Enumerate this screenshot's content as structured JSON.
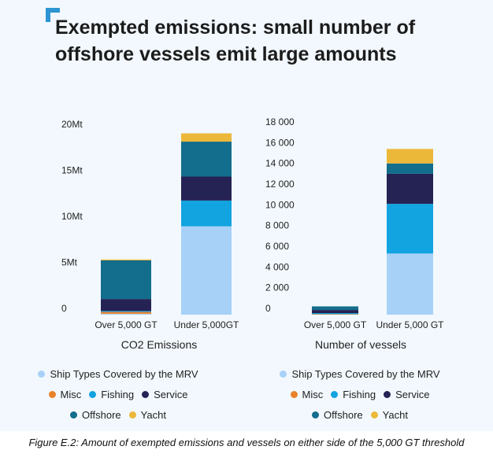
{
  "title_lines": [
    "Exempted emissions: small number of",
    "offshore vessels emit large amounts"
  ],
  "caption": "Figure E.2: Amount of exempted emissions and vessels on either side of the 5,000 GT threshold",
  "legend_rows": [
    [
      {
        "label": "Ship Types Covered by the MRV",
        "color": "#a8d1f7"
      }
    ],
    [
      {
        "label": "Misc",
        "color": "#e9822a"
      },
      {
        "label": "Fishing",
        "color": "#12a4e0"
      },
      {
        "label": "Service",
        "color": "#252254"
      }
    ],
    [
      {
        "label": "Offshore",
        "color": "#136d8c"
      },
      {
        "label": "Yacht",
        "color": "#ecb83a"
      }
    ]
  ],
  "chart_data": [
    {
      "type": "bar",
      "stacked": true,
      "title": "",
      "xlabel": "CO2 Emissions",
      "ylabel": "",
      "categories": [
        "Over 5,000 GT",
        "Under 5,000GT"
      ],
      "ylim": [
        0,
        20
      ],
      "yticks": [
        0,
        5,
        10,
        15,
        20
      ],
      "ytick_labels": [
        "0",
        "5Mt",
        "10Mt",
        "15Mt",
        "20Mt"
      ],
      "grid": false,
      "legend_position": "bottom",
      "series": [
        {
          "name": "Ship Types Covered by the MRV",
          "color": "#a8d1f7",
          "values": [
            0.1,
            9.6
          ]
        },
        {
          "name": "Misc",
          "color": "#e9822a",
          "values": [
            0.2,
            0
          ]
        },
        {
          "name": "Fishing",
          "color": "#12a4e0",
          "values": [
            0.1,
            2.8
          ]
        },
        {
          "name": "Service",
          "color": "#252254",
          "values": [
            1.3,
            2.6
          ]
        },
        {
          "name": "Offshore",
          "color": "#136d8c",
          "values": [
            4.2,
            3.8
          ]
        },
        {
          "name": "Yacht",
          "color": "#ecb83a",
          "values": [
            0.1,
            0.9
          ]
        }
      ]
    },
    {
      "type": "bar",
      "stacked": true,
      "title": "",
      "xlabel": "Number of vessels",
      "ylabel": "",
      "categories": [
        "Over 5,000 GT",
        "Under 5,000 GT"
      ],
      "ylim": [
        0,
        18000
      ],
      "yticks": [
        0,
        2000,
        4000,
        6000,
        8000,
        10000,
        12000,
        14000,
        16000,
        18000
      ],
      "ytick_labels": [
        "0",
        "2 000",
        "4 000",
        "6 000",
        "8 000",
        "10 000",
        "12 000",
        "14 000",
        "16 000",
        "18 000"
      ],
      "grid": false,
      "legend_position": "bottom",
      "series": [
        {
          "name": "Ship Types Covered by the MRV",
          "color": "#a8d1f7",
          "values": [
            0,
            5900
          ]
        },
        {
          "name": "Misc",
          "color": "#e9822a",
          "values": [
            50,
            0
          ]
        },
        {
          "name": "Fishing",
          "color": "#12a4e0",
          "values": [
            100,
            4800
          ]
        },
        {
          "name": "Service",
          "color": "#252254",
          "values": [
            300,
            2900
          ]
        },
        {
          "name": "Offshore",
          "color": "#136d8c",
          "values": [
            350,
            1000
          ]
        },
        {
          "name": "Yacht",
          "color": "#ecb83a",
          "values": [
            0,
            1400
          ]
        }
      ]
    }
  ]
}
